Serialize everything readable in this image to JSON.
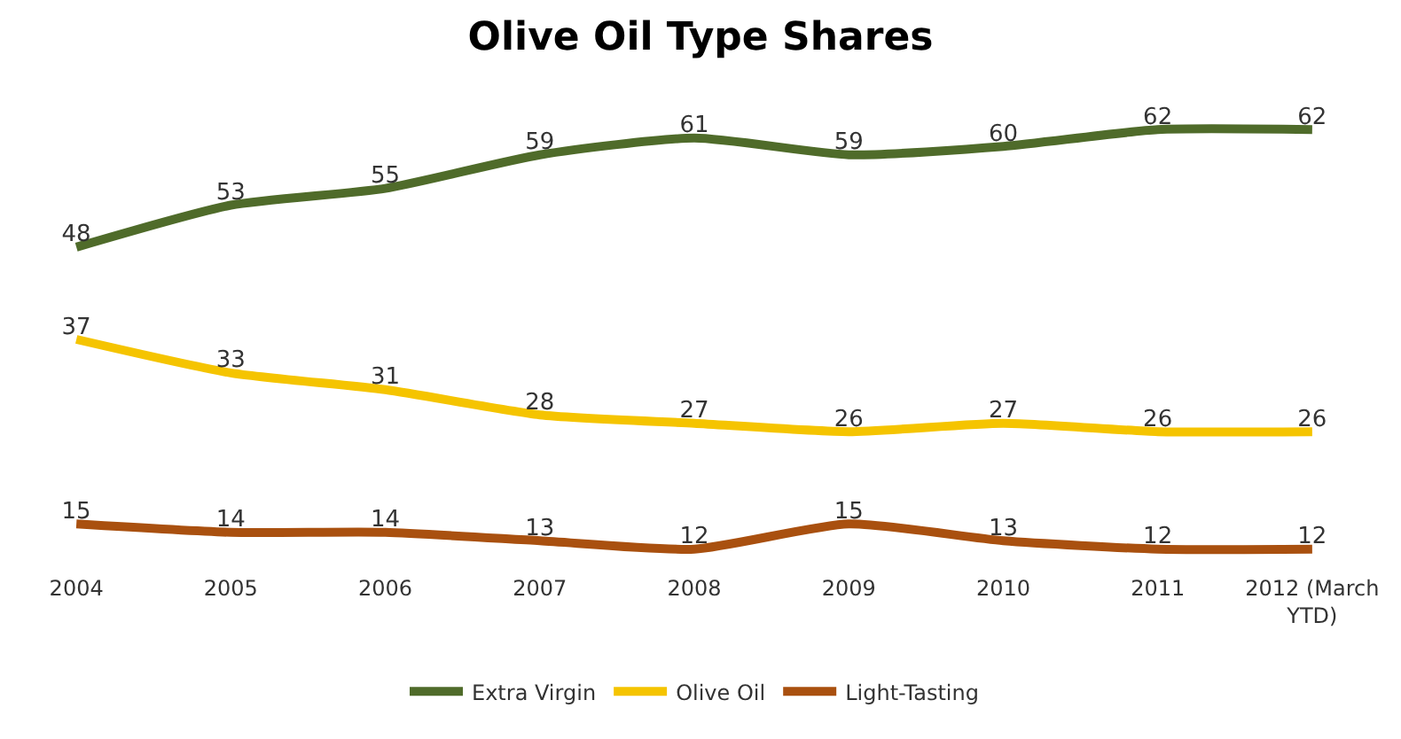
{
  "chart_data": {
    "type": "line",
    "title": "Olive Oil Type Shares",
    "categories": [
      "2004",
      "2005",
      "2006",
      "2007",
      "2008",
      "2009",
      "2010",
      "2011",
      "2012 (March YTD)"
    ],
    "series": [
      {
        "name": "Extra Virgin",
        "color": "#4f6b2a",
        "values": [
          48,
          53,
          55,
          59,
          61,
          59,
          60,
          62,
          62
        ]
      },
      {
        "name": "Olive Oil",
        "color": "#f5c400",
        "values": [
          37,
          33,
          31,
          28,
          27,
          26,
          27,
          26,
          26
        ]
      },
      {
        "name": "Light-Tasting",
        "color": "#a9500f",
        "values": [
          15,
          14,
          14,
          13,
          12,
          15,
          13,
          12,
          12
        ]
      }
    ],
    "data_labels": true,
    "legend": "bottom",
    "grid": false,
    "marker": "none",
    "line_style": "solid"
  }
}
